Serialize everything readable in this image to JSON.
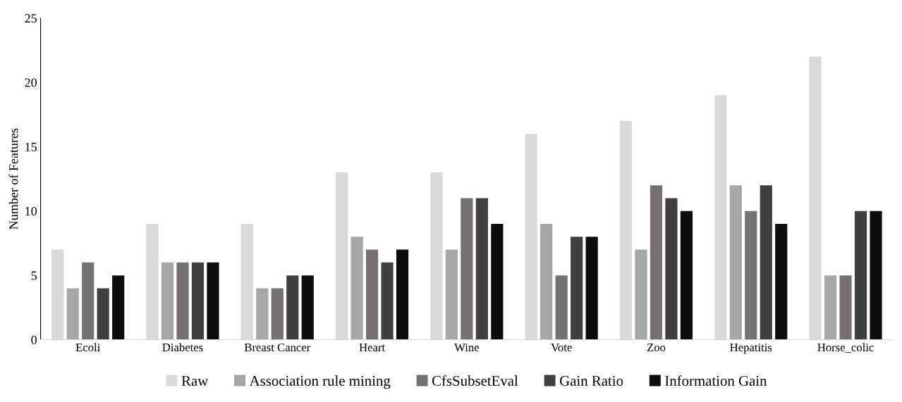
{
  "chart_data": {
    "type": "bar",
    "ylabel": "Number of Features",
    "categories": [
      "Ecoli",
      "Diabetes",
      "Breast Cancer",
      "Heart",
      "Wine",
      "Vote",
      "Zoo",
      "Hepatitis",
      "Horse_colic"
    ],
    "series": [
      {
        "name": "Raw",
        "color": "#d9d9d9",
        "values": [
          7,
          9,
          9,
          13,
          13,
          16,
          17,
          19,
          22
        ]
      },
      {
        "name": "Association rule mining",
        "color": "#a6a6a6",
        "values": [
          4,
          6,
          4,
          8,
          7,
          9,
          7,
          12,
          5
        ]
      },
      {
        "name": "CfsSubsetEval",
        "color": "#767171",
        "values": [
          6,
          6,
          4,
          7,
          11,
          5,
          12,
          10,
          5
        ]
      },
      {
        "name": "Gain Ratio",
        "color": "#404040",
        "values": [
          4,
          6,
          5,
          6,
          11,
          8,
          11,
          12,
          10
        ]
      },
      {
        "name": "Information Gain",
        "color": "#0d0d0d",
        "values": [
          5,
          6,
          5,
          7,
          9,
          8,
          10,
          9,
          10
        ]
      }
    ],
    "ylim": [
      0,
      25
    ],
    "yticks": [
      0,
      5,
      10,
      15,
      20,
      25
    ],
    "grid": false,
    "legend": "bottom"
  }
}
